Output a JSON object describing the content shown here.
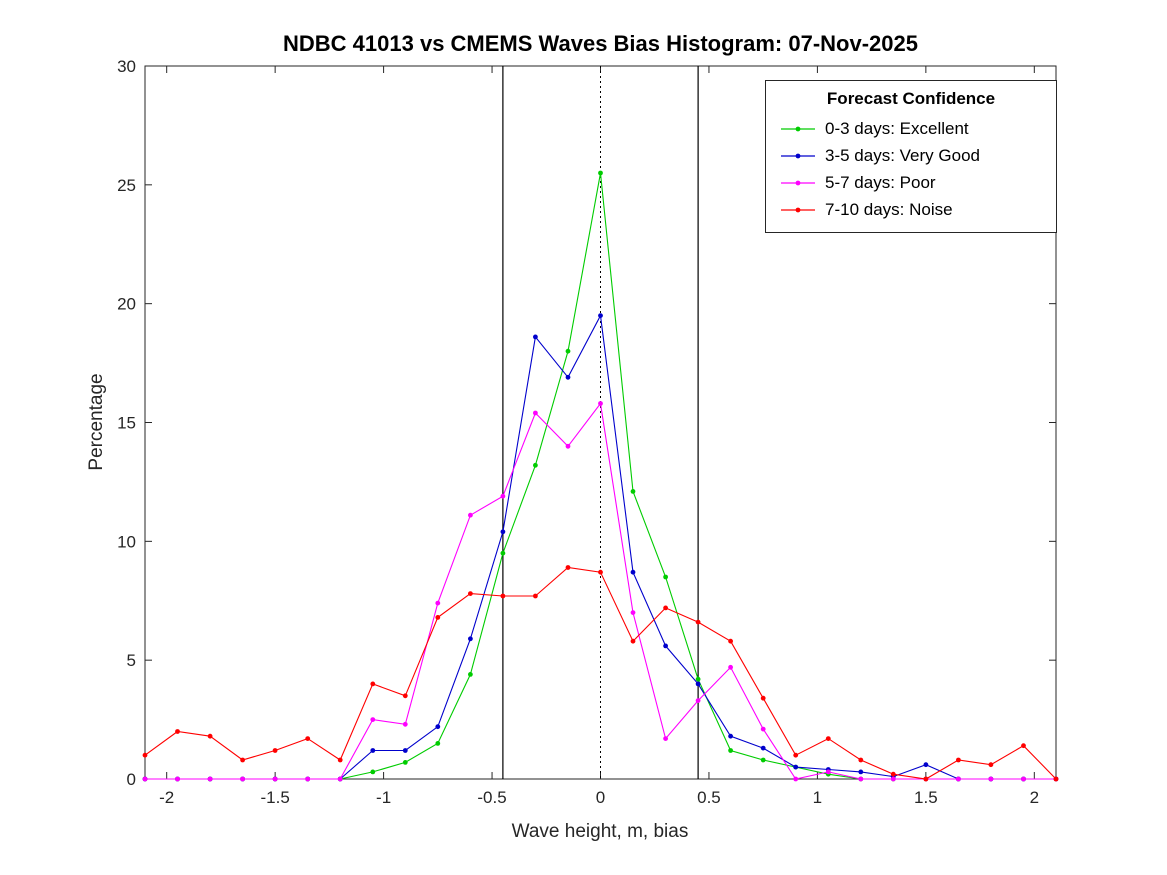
{
  "chart_data": {
    "type": "line",
    "title": "NDBC 41013 vs CMEMS Waves Bias Histogram: 07-Nov-2025",
    "xlabel": "Wave height, m, bias",
    "ylabel": "Percentage",
    "xlim": [
      -2.1,
      2.1
    ],
    "ylim": [
      0,
      30
    ],
    "grid": false,
    "xticks": [
      -2,
      -1.5,
      -1,
      -0.5,
      0,
      0.5,
      1,
      1.5,
      2
    ],
    "xtick_labels": [
      "-2",
      "-1.5",
      "-1",
      "-0.5",
      "0",
      "0.5",
      "1",
      "1.5",
      "2"
    ],
    "yticks": [
      0,
      5,
      10,
      15,
      20,
      25,
      30
    ],
    "ytick_labels": [
      "0",
      "5",
      "10",
      "15",
      "20",
      "25",
      "30"
    ],
    "x": [
      -2.1,
      -1.95,
      -1.8,
      -1.65,
      -1.5,
      -1.35,
      -1.2,
      -1.05,
      -0.9,
      -0.75,
      -0.6,
      -0.45,
      -0.3,
      -0.15,
      0,
      0.15,
      0.3,
      0.45,
      0.6,
      0.75,
      0.9,
      1.05,
      1.2,
      1.35,
      1.5,
      1.65,
      1.8,
      1.95,
      2.1
    ],
    "series": [
      {
        "name": "0-3 days: Excellent",
        "color": "#00cc00",
        "values": [
          0,
          0,
          0,
          0,
          0,
          0,
          0,
          0.3,
          0.7,
          1.5,
          4.4,
          9.5,
          13.2,
          18.0,
          25.5,
          12.1,
          8.5,
          4.2,
          1.2,
          0.8,
          0.5,
          0.2,
          0,
          0,
          0,
          0,
          0,
          0,
          0
        ]
      },
      {
        "name": "3-5 days: Very Good",
        "color": "#0000cc",
        "values": [
          0,
          0,
          0,
          0,
          0,
          0,
          0,
          1.2,
          1.2,
          2.2,
          5.9,
          10.4,
          18.6,
          16.9,
          19.5,
          8.7,
          5.6,
          4.0,
          1.8,
          1.3,
          0.5,
          0.4,
          0.3,
          0.1,
          0.6,
          0,
          0,
          0,
          0
        ]
      },
      {
        "name": "5-7 days: Poor",
        "color": "#ff00ff",
        "values": [
          0,
          0,
          0,
          0,
          0,
          0,
          0,
          2.5,
          2.3,
          7.4,
          11.1,
          11.9,
          15.4,
          14.0,
          15.8,
          7.0,
          1.7,
          3.3,
          4.7,
          2.1,
          0,
          0.3,
          0,
          0,
          0,
          0,
          0,
          0,
          0
        ]
      },
      {
        "name": "7-10 days: Noise",
        "color": "#ff0000",
        "values": [
          1.0,
          2.0,
          1.8,
          0.8,
          1.2,
          1.7,
          0.8,
          4.0,
          3.5,
          6.8,
          7.8,
          7.7,
          7.7,
          8.9,
          8.7,
          5.8,
          7.2,
          6.6,
          5.8,
          3.4,
          1.0,
          1.7,
          0.8,
          0.2,
          0.0,
          0.8,
          0.6,
          1.4,
          0.0
        ]
      }
    ],
    "reference_lines": {
      "solid_vertical": [
        -0.45,
        0.45
      ],
      "dotted_vertical": [
        0
      ]
    },
    "legend": {
      "title": "Forecast Confidence",
      "position": "northeast"
    }
  }
}
